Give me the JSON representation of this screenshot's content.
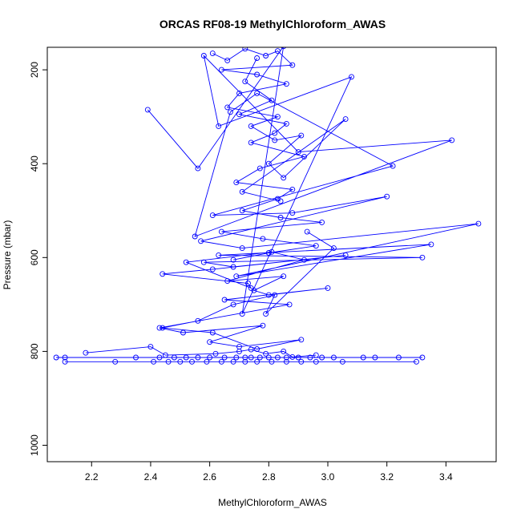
{
  "chart_data": {
    "type": "line",
    "title": "ORCAS RF08-19 MethylChloroform_AWAS",
    "xlabel": "MethylChloroform_AWAS",
    "ylabel": "Pressure (mbar)",
    "xlim": [
      2.05,
      3.57
    ],
    "ylim": [
      1035,
      152
    ],
    "y_reversed": true,
    "x_ticks": [
      2.2,
      2.4,
      2.6,
      2.8,
      3.0,
      3.2,
      3.4
    ],
    "x_tick_labels": [
      "2.2",
      "2.4",
      "2.6",
      "2.8",
      "3.0",
      "3.2",
      "3.4"
    ],
    "y_ticks": [
      200,
      400,
      600,
      800,
      1000
    ],
    "y_tick_labels": [
      "200",
      "400",
      "600",
      "800",
      "1000"
    ],
    "grid": false,
    "legend": "none",
    "line_color": "#0000ff",
    "marker": "open-circle",
    "series": [
      {
        "x": [
          2.39,
          2.56,
          2.85,
          2.71,
          3.08,
          2.63,
          2.58,
          2.9,
          3.42,
          2.55,
          2.67,
          2.76,
          3.22,
          2.61,
          2.88,
          3.2,
          2.57,
          2.71,
          3.51,
          2.69,
          3.35,
          2.63,
          3.32,
          2.58,
          2.68,
          3.06,
          2.61,
          2.44,
          2.73,
          2.74,
          2.52,
          2.81,
          2.92,
          2.66,
          2.85,
          2.75,
          2.8,
          3.0,
          2.65,
          2.87,
          2.43,
          2.51,
          2.78,
          2.6,
          2.7,
          2.91,
          2.76,
          2.61,
          2.44,
          2.56,
          2.68,
          2.82,
          2.79,
          3.02,
          2.93
        ],
        "y": [
          285,
          410,
          150,
          720,
          215,
          320,
          170,
          375,
          350,
          555,
          290,
          250,
          405,
          510,
          505,
          470,
          565,
          580,
          528,
          640,
          572,
          595,
          600,
          610,
          620,
          595,
          625,
          635,
          655,
          665,
          610,
          588,
          605,
          650,
          640,
          670,
          680,
          665,
          690,
          700,
          750,
          760,
          745,
          780,
          790,
          775,
          795,
          760,
          750,
          735,
          700,
          680,
          720,
          580,
          545
        ]
      },
      {
        "x": [
          2.08,
          2.11,
          2.35,
          2.43,
          2.48,
          2.52,
          2.56,
          2.6,
          2.65,
          2.69,
          2.72,
          2.74,
          2.77,
          2.8,
          2.83,
          2.86,
          2.9,
          2.94,
          2.98,
          3.02,
          3.12,
          3.16,
          3.24,
          3.32
        ],
        "y": [
          813,
          813,
          813,
          813,
          813,
          813,
          813,
          813,
          813,
          813,
          813,
          813,
          813,
          813,
          813,
          813,
          813,
          813,
          813,
          813,
          813,
          813,
          813,
          813
        ]
      },
      {
        "x": [
          2.11,
          2.28,
          2.41,
          2.46,
          2.5,
          2.54,
          2.59,
          2.64,
          2.68,
          2.72,
          2.76,
          2.81,
          2.86,
          2.91,
          2.96,
          3.05,
          3.3
        ],
        "y": [
          822,
          822,
          822,
          822,
          822,
          822,
          822,
          822,
          822,
          822,
          822,
          822,
          822,
          822,
          822,
          822,
          822
        ]
      },
      {
        "x": [
          2.18,
          2.4,
          2.45,
          2.62,
          2.7,
          2.74,
          2.79,
          2.85,
          2.88,
          2.96
        ],
        "y": [
          803,
          790,
          808,
          805,
          800,
          796,
          805,
          800,
          812,
          808
        ]
      },
      {
        "x": [
          2.61,
          2.66,
          2.72,
          2.79,
          2.83,
          2.88,
          2.64,
          2.76,
          2.86,
          2.7,
          2.66,
          2.83,
          2.74,
          2.82,
          2.91,
          2.8,
          2.85,
          3.06,
          2.71,
          2.84
        ],
        "y": [
          165,
          180,
          155,
          170,
          160,
          190,
          200,
          210,
          230,
          250,
          280,
          300,
          320,
          350,
          340,
          400,
          430,
          305,
          460,
          480
        ]
      },
      {
        "x": [
          2.76,
          2.72,
          2.81,
          2.7,
          2.86,
          2.82,
          2.74,
          2.92,
          2.77,
          2.69,
          2.88,
          2.83,
          2.71,
          2.84,
          2.98,
          2.64,
          2.78,
          2.96,
          2.8,
          2.68
        ],
        "y": [
          175,
          225,
          265,
          295,
          315,
          335,
          355,
          385,
          410,
          440,
          455,
          475,
          500,
          515,
          525,
          545,
          560,
          575,
          590,
          605
        ]
      }
    ]
  }
}
